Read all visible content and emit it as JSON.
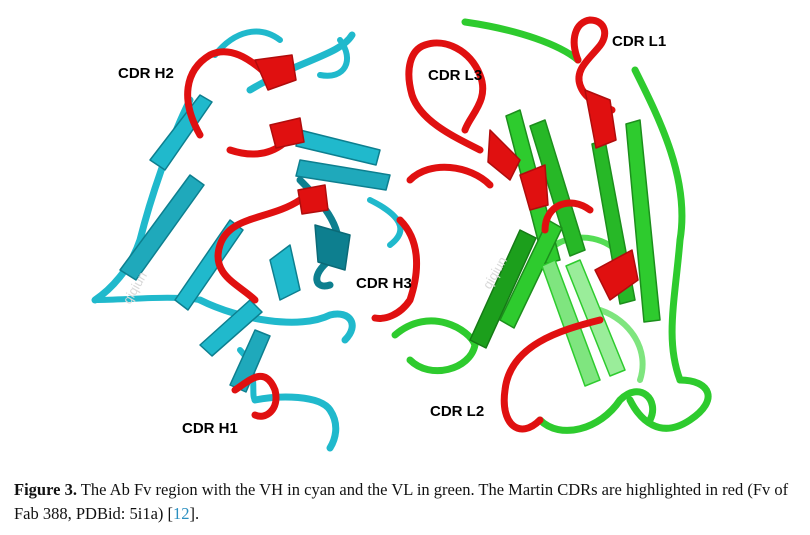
{
  "figure": {
    "colors": {
      "vh": "#20b9cc",
      "vh_dark": "#0d7f8f",
      "vl": "#2ecb2e",
      "vl_dark": "#1c8f1c",
      "cdr": "#e01010"
    },
    "labels": {
      "h1": "CDR H1",
      "h2": "CDR H2",
      "h3": "CDR H3",
      "l1": "CDR L1",
      "l2": "CDR L2",
      "l3": "CDR L3"
    },
    "watermark": "qiqiun"
  },
  "caption": {
    "label": "Figure 3.",
    "text_before": " The Ab Fv region with the VH in cyan and the VL in green. The Martin CDRs are highlighted in red (Fv of Fab 388, PDBid: 5i1a) [",
    "ref": "12",
    "text_after": "]."
  }
}
